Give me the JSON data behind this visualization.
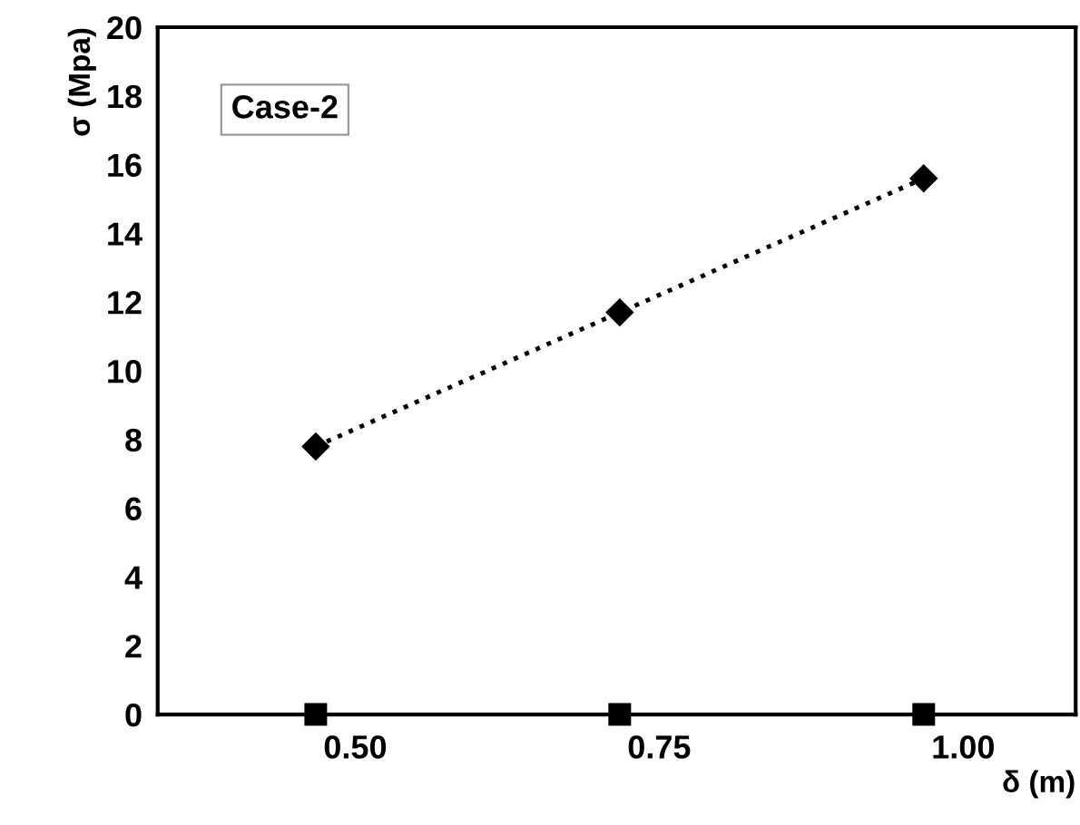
{
  "chart_data": {
    "type": "line",
    "xlabel": "δ (m)",
    "ylabel": "σ (Mpa)",
    "categories": [
      "0.50",
      "0.75",
      "1.00"
    ],
    "series": [
      {
        "color": "#000000",
        "values": [
          7.8,
          11.7,
          15.6
        ],
        "marker": "diamond",
        "line_style": "dotted"
      },
      {
        "type": "scatter",
        "color": "#000000",
        "values": [
          0,
          0,
          0
        ],
        "marker": "square"
      }
    ],
    "ylim": [
      0,
      20
    ],
    "yticks": [
      0,
      2,
      4,
      6,
      8,
      10,
      12,
      14,
      16,
      18,
      20
    ],
    "grid": false,
    "legend": false,
    "annotations": [
      "Case-2"
    ]
  }
}
